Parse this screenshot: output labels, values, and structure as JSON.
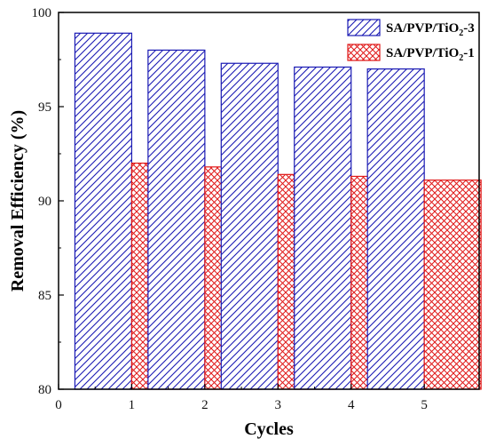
{
  "chart_data": {
    "type": "bar",
    "categories": [
      "1",
      "2",
      "3",
      "4",
      "5"
    ],
    "series": [
      {
        "name": "SA/PVP/TiO2-3",
        "label_base": "SA/PVP/TiO",
        "label_sub": "2",
        "label_suffix": "-3",
        "values": [
          98.9,
          98.0,
          97.3,
          97.1,
          97.0
        ],
        "color": "#1a1ab4",
        "pattern": "diagonal-hatch"
      },
      {
        "name": "SA/PVP/TiO2-1",
        "label_base": "SA/PVP/TiO",
        "label_sub": "2",
        "label_suffix": "-1",
        "values": [
          92.0,
          91.8,
          91.4,
          91.3,
          91.1
        ],
        "color": "#e01818",
        "pattern": "cross-hatch"
      }
    ],
    "xlabel": "Cycles",
    "ylabel": "Removal Efficiency (%)",
    "xlim": [
      0,
      5.75
    ],
    "xticks": [
      "0",
      "1",
      "2",
      "3",
      "4",
      "5"
    ],
    "ylim": [
      80,
      100
    ],
    "yticks": [
      "80",
      "85",
      "90",
      "95",
      "100"
    ],
    "legend_position": "top-right",
    "grid": false
  }
}
